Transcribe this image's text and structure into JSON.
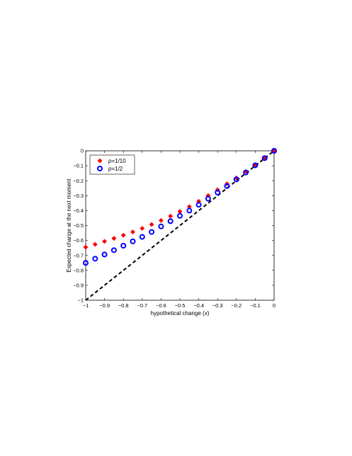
{
  "chart_data": {
    "type": "scatter",
    "xlabel": "hypothetical change (x)",
    "xlabel_prefix": "hypothetical change (",
    "xlabel_var": "x",
    "xlabel_suffix": ")",
    "ylabel": "Expected change at the next moment",
    "xlim": [
      -1,
      0
    ],
    "ylim": [
      -1,
      0
    ],
    "x_ticks": [
      -1,
      -0.9,
      -0.8,
      -0.7,
      -0.6,
      -0.5,
      -0.4,
      -0.3,
      -0.2,
      -0.1,
      0
    ],
    "y_ticks": [
      0,
      -0.1,
      -0.2,
      -0.3,
      -0.4,
      -0.5,
      -0.6,
      -0.7,
      -0.8,
      -0.9,
      -1
    ],
    "x_tick_labels": [
      "−1",
      "−0.9",
      "−0.8",
      "−0.7",
      "−0.6",
      "−0.5",
      "−0.4",
      "−0.3",
      "−0.2",
      "−0.1",
      "0"
    ],
    "y_tick_labels": [
      "0",
      "−0.1",
      "−0.2",
      "−0.3",
      "−0.4",
      "−0.5",
      "−0.6",
      "−0.7",
      "−0.8",
      "−0.9",
      "−1"
    ],
    "grid": false,
    "legend_position": "top-left",
    "series": [
      {
        "name": "p=1/10",
        "legend_var": "p",
        "legend_rest": "=1/10",
        "marker": "diamond",
        "color": "#ff0000",
        "x": [
          -1,
          -0.95,
          -0.9,
          -0.85,
          -0.8,
          -0.75,
          -0.7,
          -0.65,
          -0.6,
          -0.55,
          -0.5,
          -0.45,
          -0.4,
          -0.35,
          -0.3,
          -0.25,
          -0.2,
          -0.15,
          -0.1,
          -0.05,
          0
        ],
        "y": [
          -0.645,
          -0.626,
          -0.606,
          -0.586,
          -0.565,
          -0.543,
          -0.519,
          -0.493,
          -0.466,
          -0.437,
          -0.406,
          -0.374,
          -0.338,
          -0.3,
          -0.261,
          -0.221,
          -0.181,
          -0.138,
          -0.095,
          -0.049,
          0
        ]
      },
      {
        "name": "p=1/2",
        "legend_var": "p",
        "legend_rest": "=1/2",
        "marker": "circle",
        "color": "#0000ff",
        "x": [
          -1,
          -0.95,
          -0.9,
          -0.85,
          -0.8,
          -0.75,
          -0.7,
          -0.65,
          -0.6,
          -0.55,
          -0.5,
          -0.45,
          -0.4,
          -0.35,
          -0.3,
          -0.25,
          -0.2,
          -0.15,
          -0.1,
          -0.05,
          0
        ],
        "y": [
          -0.75,
          -0.722,
          -0.694,
          -0.665,
          -0.635,
          -0.606,
          -0.576,
          -0.543,
          -0.506,
          -0.471,
          -0.435,
          -0.4,
          -0.361,
          -0.32,
          -0.279,
          -0.236,
          -0.191,
          -0.145,
          -0.097,
          -0.049,
          0
        ]
      },
      {
        "name": "",
        "marker": "dashed-line",
        "color": "#000000",
        "x": [
          -1,
          0
        ],
        "y": [
          -1,
          0
        ]
      }
    ]
  }
}
